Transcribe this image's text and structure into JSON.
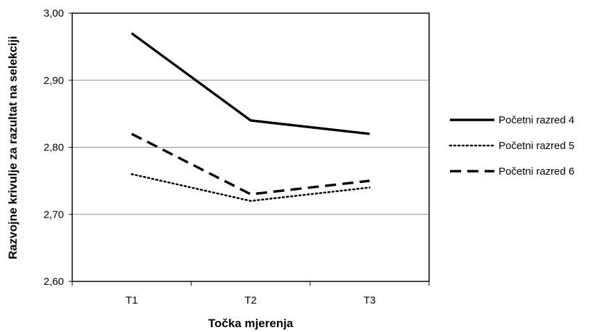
{
  "chart_data": {
    "type": "line",
    "title": "",
    "xlabel": "Točka mjerenja",
    "ylabel": "Razvojne krivulje za razultat na selekciji",
    "categories": [
      "T1",
      "T2",
      "T3"
    ],
    "ylim": [
      2.6,
      3.0
    ],
    "yticks": [
      "2,60",
      "2,70",
      "2,80",
      "2,90",
      "3,00"
    ],
    "grid": "horizontal",
    "legend_position": "right",
    "series": [
      {
        "name": "Početni razred 4",
        "values": [
          2.97,
          2.84,
          2.82
        ],
        "style": "solid",
        "color": "#000000"
      },
      {
        "name": "Početni razred 5",
        "values": [
          2.76,
          2.72,
          2.74
        ],
        "style": "dotted",
        "color": "#000000"
      },
      {
        "name": "Početni razred 6",
        "values": [
          2.82,
          2.73,
          2.75
        ],
        "style": "dashed",
        "color": "#000000"
      }
    ]
  }
}
